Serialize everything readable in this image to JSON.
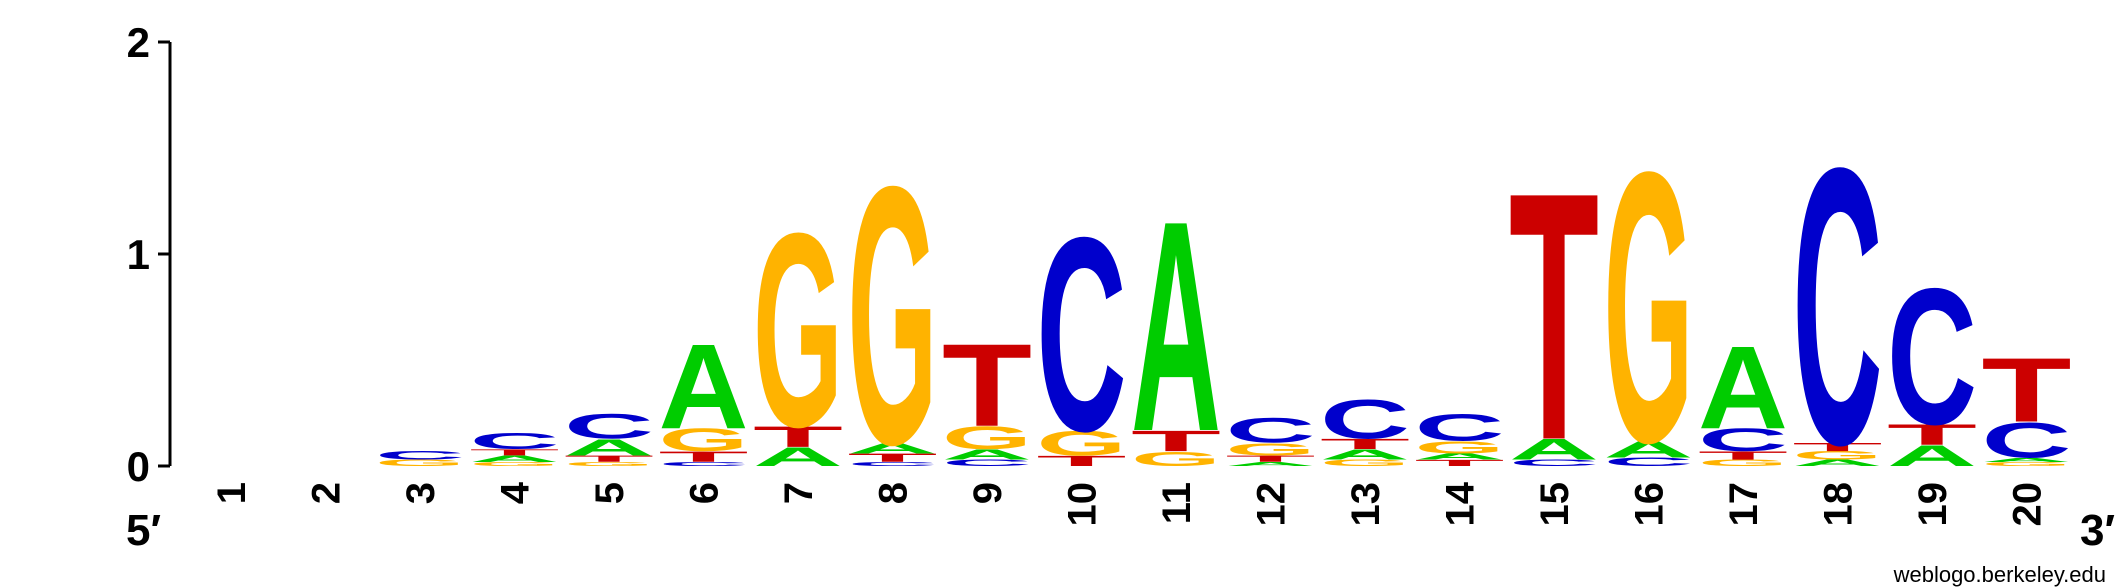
{
  "chart_data": {
    "type": "sequence-logo",
    "ylim": [
      0,
      2
    ],
    "yticks": [
      "0",
      "1",
      "2"
    ],
    "end_labels": {
      "left": "5′",
      "right": "3′"
    },
    "credit": "weblogo.berkeley.edu",
    "colors": {
      "A": "#00cc00",
      "C": "#0000cc",
      "G": "#ffb300",
      "T": "#cc0000"
    },
    "positions": [
      {
        "label": "1",
        "letters": []
      },
      {
        "label": "2",
        "letters": []
      },
      {
        "label": "3",
        "letters": [
          {
            "base": "G",
            "h": 0.03
          },
          {
            "base": "C",
            "h": 0.04
          }
        ]
      },
      {
        "label": "4",
        "letters": [
          {
            "base": "G",
            "h": 0.02
          },
          {
            "base": "A",
            "h": 0.03
          },
          {
            "base": "T",
            "h": 0.03
          },
          {
            "base": "C",
            "h": 0.08
          }
        ]
      },
      {
        "label": "5",
        "letters": [
          {
            "base": "G",
            "h": 0.02
          },
          {
            "base": "T",
            "h": 0.03
          },
          {
            "base": "A",
            "h": 0.08
          },
          {
            "base": "C",
            "h": 0.12
          }
        ]
      },
      {
        "label": "6",
        "letters": [
          {
            "base": "C",
            "h": 0.02
          },
          {
            "base": "T",
            "h": 0.05
          },
          {
            "base": "G",
            "h": 0.11
          },
          {
            "base": "A",
            "h": 0.41
          }
        ]
      },
      {
        "label": "7",
        "letters": [
          {
            "base": "A",
            "h": 0.09
          },
          {
            "base": "T",
            "h": 0.1
          },
          {
            "base": "G",
            "h": 0.94
          }
        ]
      },
      {
        "label": "8",
        "letters": [
          {
            "base": "C",
            "h": 0.02
          },
          {
            "base": "T",
            "h": 0.04
          },
          {
            "base": "A",
            "h": 0.05
          },
          {
            "base": "G",
            "h": 1.25
          }
        ]
      },
      {
        "label": "9",
        "letters": [
          {
            "base": "C",
            "h": 0.03
          },
          {
            "base": "A",
            "h": 0.05
          },
          {
            "base": "G",
            "h": 0.11
          },
          {
            "base": "T",
            "h": 0.4
          }
        ]
      },
      {
        "label": "10",
        "letters": [
          {
            "base": "T",
            "h": 0.05
          },
          {
            "base": "G",
            "h": 0.12
          },
          {
            "base": "C",
            "h": 0.94
          }
        ]
      },
      {
        "label": "11",
        "letters": [
          {
            "base": "G",
            "h": 0.07
          },
          {
            "base": "T",
            "h": 0.1
          },
          {
            "base": "A",
            "h": 1.02
          }
        ]
      },
      {
        "label": "12",
        "letters": [
          {
            "base": "A",
            "h": 0.02
          },
          {
            "base": "T",
            "h": 0.03
          },
          {
            "base": "G",
            "h": 0.06
          },
          {
            "base": "C",
            "h": 0.12
          }
        ]
      },
      {
        "label": "13",
        "letters": [
          {
            "base": "G",
            "h": 0.03
          },
          {
            "base": "A",
            "h": 0.05
          },
          {
            "base": "T",
            "h": 0.05
          },
          {
            "base": "C",
            "h": 0.19
          }
        ]
      },
      {
        "label": "14",
        "letters": [
          {
            "base": "T",
            "h": 0.03
          },
          {
            "base": "A",
            "h": 0.03
          },
          {
            "base": "G",
            "h": 0.06
          },
          {
            "base": "C",
            "h": 0.13
          }
        ]
      },
      {
        "label": "15",
        "letters": [
          {
            "base": "C",
            "h": 0.03
          },
          {
            "base": "A",
            "h": 0.1
          },
          {
            "base": "T",
            "h": 1.2
          }
        ]
      },
      {
        "label": "16",
        "letters": [
          {
            "base": "C",
            "h": 0.04
          },
          {
            "base": "A",
            "h": 0.08
          },
          {
            "base": "G",
            "h": 1.31
          }
        ]
      },
      {
        "label": "17",
        "letters": [
          {
            "base": "G",
            "h": 0.03
          },
          {
            "base": "T",
            "h": 0.04
          },
          {
            "base": "C",
            "h": 0.11
          },
          {
            "base": "A",
            "h": 0.4
          }
        ]
      },
      {
        "label": "18",
        "letters": [
          {
            "base": "A",
            "h": 0.03
          },
          {
            "base": "G",
            "h": 0.04
          },
          {
            "base": "T",
            "h": 0.04
          },
          {
            "base": "C",
            "h": 1.34
          }
        ]
      },
      {
        "label": "19",
        "letters": [
          {
            "base": "A",
            "h": 0.1
          },
          {
            "base": "T",
            "h": 0.1
          },
          {
            "base": "C",
            "h": 0.66
          }
        ]
      },
      {
        "label": "20",
        "letters": [
          {
            "base": "G",
            "h": 0.02
          },
          {
            "base": "A",
            "h": 0.02
          },
          {
            "base": "C",
            "h": 0.17
          },
          {
            "base": "T",
            "h": 0.31
          }
        ]
      }
    ]
  }
}
